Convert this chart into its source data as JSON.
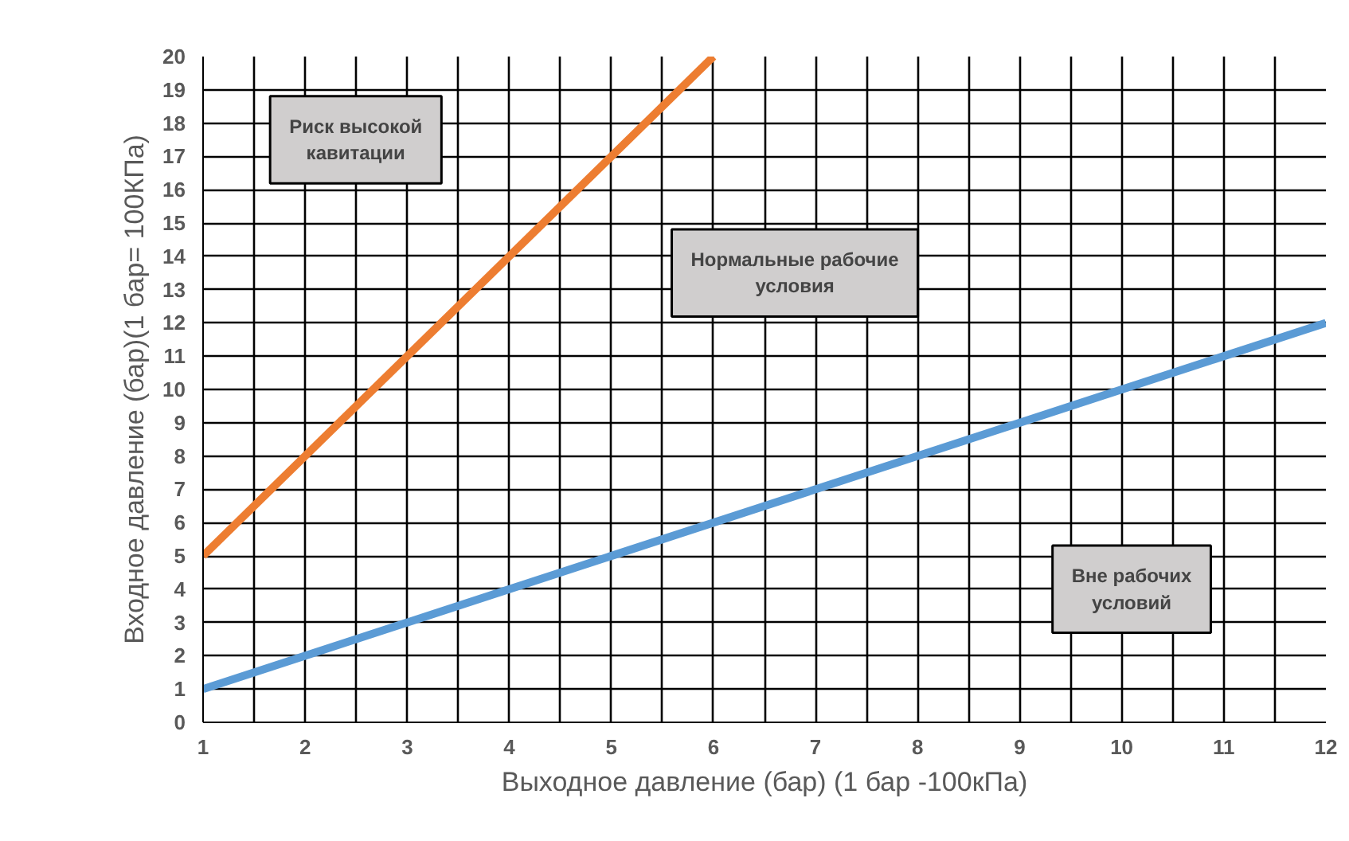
{
  "chart_data": {
    "type": "line",
    "xlabel": "Выходное давление (бар) (1 бар -100кПа)",
    "ylabel": "Входное давление (бар)(1 бар= 100КПа)",
    "series": [
      {
        "color": "#ed7d31",
        "x": [
          1,
          6
        ],
        "values": [
          5,
          20
        ]
      },
      {
        "color": "#5b9bd5",
        "x": [
          1,
          12
        ],
        "values": [
          1,
          12
        ]
      }
    ],
    "xlim": [
      1,
      12
    ],
    "ylim": [
      0,
      20
    ],
    "xticks": [
      1,
      {
        "value": 1.5,
        "label": null
      },
      2,
      {
        "value": 2.5,
        "label": null
      },
      3,
      {
        "value": 3.5,
        "label": null
      },
      4,
      {
        "value": 4.5,
        "label": null
      },
      5,
      {
        "value": 5.5,
        "label": null
      },
      6,
      {
        "value": 6.5,
        "label": null
      },
      7,
      {
        "value": 7.5,
        "label": null
      },
      8,
      {
        "value": 8.5,
        "label": null
      },
      9,
      {
        "value": 9.5,
        "label": null
      },
      10,
      {
        "value": 10.5,
        "label": null
      },
      11,
      {
        "value": 11.5,
        "label": null
      },
      12
    ],
    "yticks": [
      0,
      1,
      2,
      3,
      4,
      5,
      6,
      7,
      8,
      9,
      10,
      11,
      12,
      13,
      14,
      15,
      16,
      17,
      18,
      19,
      20
    ],
    "grid": true,
    "marker": "none",
    "line_style": "solid",
    "annotations": [
      "Риск высокой\nкавитации",
      "Нормальные рабочие\nусловия",
      "Вне рабочих\nусловий"
    ]
  }
}
